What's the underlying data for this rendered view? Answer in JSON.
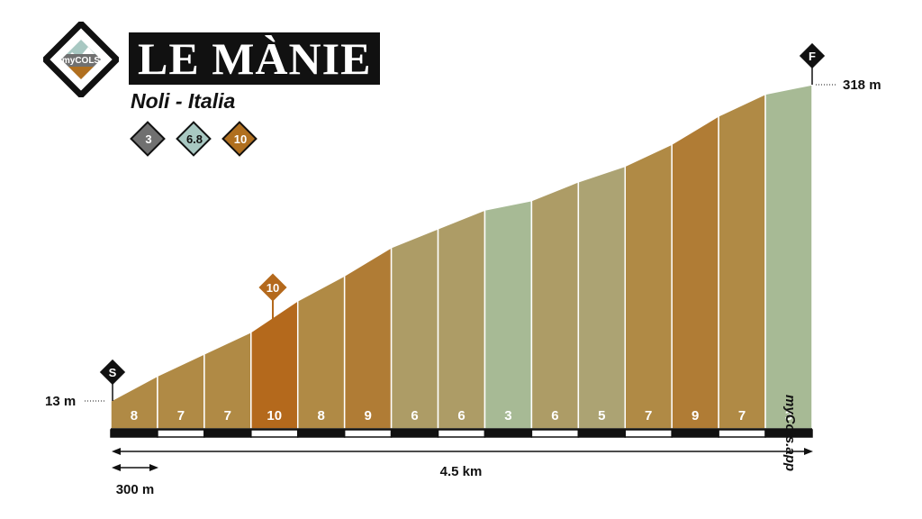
{
  "header": {
    "logo_text": "myCOLS",
    "title": "LE MÀNIE",
    "subtitle": "Noli - Italia",
    "badges": [
      {
        "value": "3",
        "color": "#707070",
        "text_color": "#ffffff"
      },
      {
        "value": "6.8",
        "color": "#a8c8c2",
        "text_color": "#111111"
      },
      {
        "value": "10",
        "color": "#b06f1f",
        "text_color": "#ffffff"
      }
    ]
  },
  "watermark": "myCols.app",
  "chart_data": {
    "type": "area",
    "title": "LE MÀNIE",
    "start_marker": "S",
    "finish_marker": "F",
    "max_gradient_marker": "10",
    "start_elevation_label": "13 m",
    "finish_elevation_label": "318 m",
    "distance_label": "4.5 km",
    "scale_label": "300 m",
    "start_elevation": 13,
    "finish_elevation": 318,
    "segment_length_m": 300,
    "gradients": [
      8,
      7,
      7,
      10,
      8,
      9,
      6,
      6,
      3,
      6,
      5,
      7,
      9,
      7,
      3
    ],
    "segment_colors": [
      "#b08a45",
      "#b08a45",
      "#b08a45",
      "#b4691c",
      "#b08a45",
      "#b07c35",
      "#ad9c66",
      "#ad9c66",
      "#a7ba95",
      "#ad9c66",
      "#aca373",
      "#b08a45",
      "#b07c35",
      "#b08a45",
      "#a7ba95"
    ],
    "colors": {
      "bar_dark": "#111111",
      "bar_light": "#ffffff",
      "ink": "#111111"
    }
  }
}
